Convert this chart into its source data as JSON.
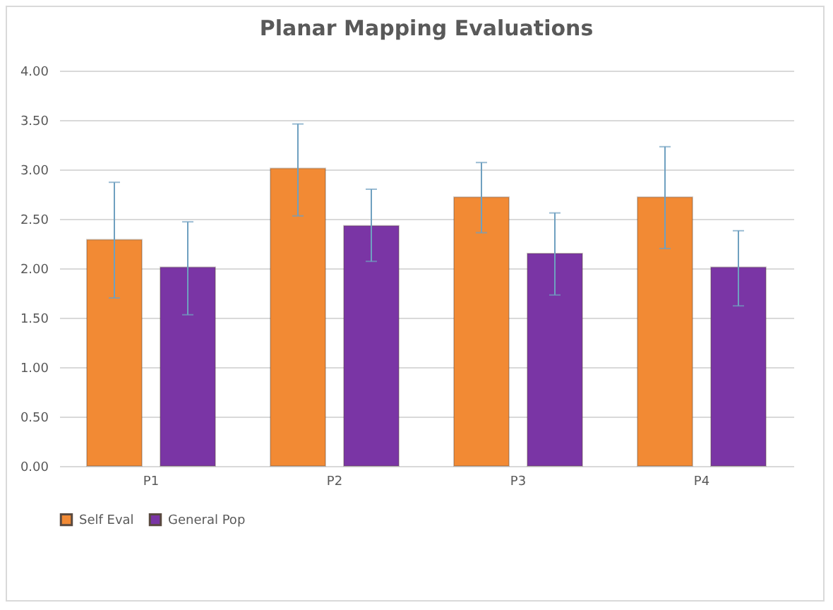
{
  "chart_data": {
    "type": "bar",
    "title": "Planar Mapping  Evaluations",
    "categories": [
      "P1",
      "P2",
      "P3",
      "P4"
    ],
    "series": [
      {
        "name": "Self Eval",
        "color": "#f28a34",
        "values": [
          2.29,
          3.01,
          2.72,
          2.72
        ],
        "errors": [
          [
            1.7,
            2.87
          ],
          [
            2.53,
            3.46
          ],
          [
            2.36,
            3.07
          ],
          [
            2.2,
            3.23
          ]
        ]
      },
      {
        "name": "General Pop",
        "color": "#7a35a5",
        "values": [
          2.01,
          2.43,
          2.15,
          2.01
        ],
        "errors": [
          [
            1.53,
            2.47
          ],
          [
            2.07,
            2.8
          ],
          [
            1.73,
            2.56
          ],
          [
            1.62,
            2.38
          ]
        ]
      }
    ],
    "ylim": [
      0,
      4
    ],
    "yticks": [
      {
        "value": 0,
        "label": "0.00"
      },
      {
        "value": 0.5,
        "label": "0.50"
      },
      {
        "value": 1,
        "label": "1.00"
      },
      {
        "value": 1.5,
        "label": "1.50"
      },
      {
        "value": 2,
        "label": "2.00"
      },
      {
        "value": 2.5,
        "label": "2.50"
      },
      {
        "value": 3,
        "label": "3.00"
      },
      {
        "value": 3.5,
        "label": "3.50"
      },
      {
        "value": 4,
        "label": "4.00"
      }
    ],
    "grid": "y",
    "legend": "bottom"
  }
}
